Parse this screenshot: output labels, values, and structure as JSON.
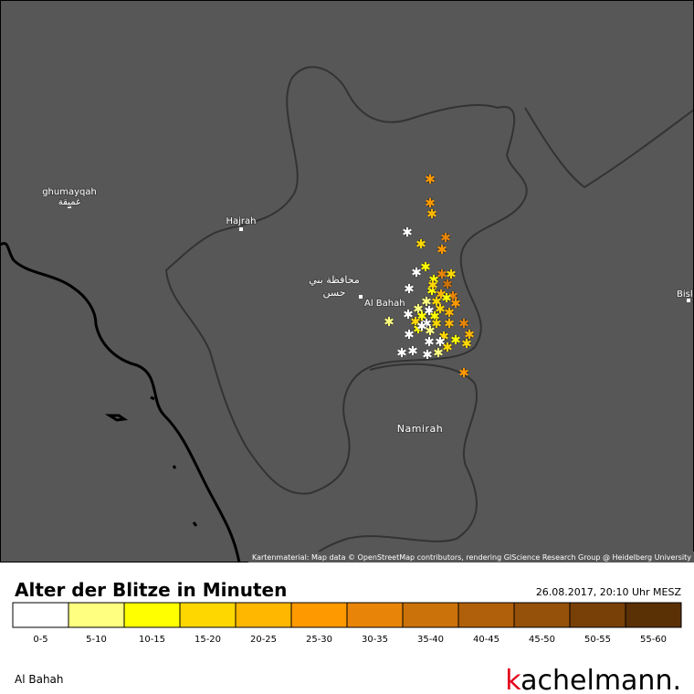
{
  "map": {
    "labels": [
      "ghumayqah",
      "غميقة",
      "Hajrah",
      "محافظة بني",
      "حسن",
      "Al Bahah",
      "Namirah",
      "Bisl"
    ],
    "attribution": "Kartenmaterial: Map data © OpenStreetMap contributors, rendering GIScience Research Group @ Heidelberg University"
  },
  "legend": {
    "title": "Alter der Blitze in Minuten",
    "timestamp": "26.08.2017, 20:10 Uhr MESZ",
    "classes": [
      {
        "label": "0-5",
        "color": "#ffffff"
      },
      {
        "label": "5-10",
        "color": "#ffff80"
      },
      {
        "label": "10-15",
        "color": "#ffff00"
      },
      {
        "label": "15-20",
        "color": "#ffd700"
      },
      {
        "label": "20-25",
        "color": "#ffb700"
      },
      {
        "label": "25-30",
        "color": "#ff9900"
      },
      {
        "label": "30-35",
        "color": "#e88508"
      },
      {
        "label": "35-40",
        "color": "#cc720a"
      },
      {
        "label": "40-45",
        "color": "#b0600a"
      },
      {
        "label": "45-50",
        "color": "#955009"
      },
      {
        "label": "50-55",
        "color": "#784007"
      },
      {
        "label": "55-60",
        "color": "#5a3005"
      }
    ]
  },
  "footer": {
    "region": "Al Bahah",
    "brand_k": "k",
    "brand_rest": "achelmann."
  }
}
